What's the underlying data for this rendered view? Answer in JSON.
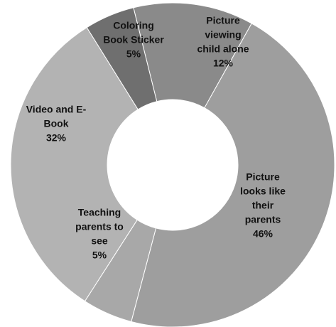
{
  "chart_data": {
    "type": "pie",
    "variant": "donut",
    "title": "",
    "legend": "none",
    "slices": [
      {
        "label": [
          "Picture",
          "viewing",
          "child alone"
        ],
        "value": 12,
        "value_label": "12%",
        "color": "#8a8a8a"
      },
      {
        "label": [
          "Picture",
          "looks like",
          "their",
          "parents"
        ],
        "value": 46,
        "value_label": "46%",
        "color": "#9e9e9e"
      },
      {
        "label": [
          "Teaching",
          "parents to",
          "see"
        ],
        "value": 5,
        "value_label": "5%",
        "color": "#a8a8a8"
      },
      {
        "label": [
          "Video and E-",
          "Book"
        ],
        "value": 32,
        "value_label": "32%",
        "color": "#b3b3b3"
      },
      {
        "label": [
          "Coloring",
          "Book Sticker"
        ],
        "value": 5,
        "value_label": "5%",
        "color": "#6f6f6f"
      }
    ]
  }
}
